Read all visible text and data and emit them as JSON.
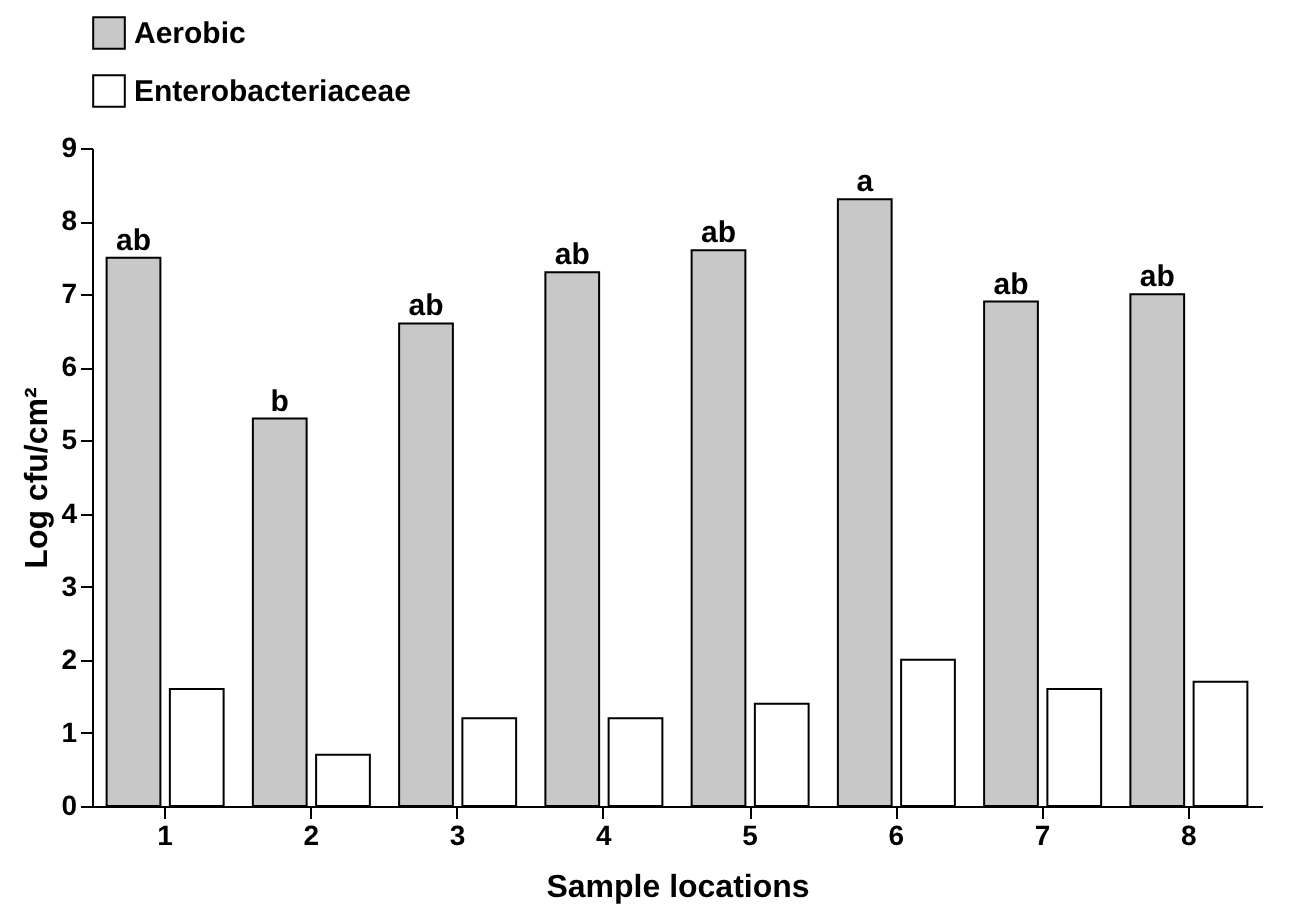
{
  "chart_data": {
    "type": "bar",
    "xlabel": "Sample locations",
    "ylabel": "Log cfu/cm²",
    "categories": [
      "1",
      "2",
      "3",
      "4",
      "5",
      "6",
      "7",
      "8"
    ],
    "series": [
      {
        "name": "Aerobic",
        "color": "#c8c8c8",
        "values": [
          7.5,
          5.3,
          6.6,
          7.3,
          7.6,
          8.3,
          6.9,
          7.0
        ]
      },
      {
        "name": "Enterobacteriaceae",
        "color": "#ffffff",
        "values": [
          1.6,
          0.7,
          1.2,
          1.2,
          1.4,
          2.0,
          1.6,
          1.7
        ]
      }
    ],
    "ylim": [
      0,
      9
    ],
    "yticks": [
      0,
      1,
      2,
      3,
      4,
      5,
      6,
      7,
      8,
      9
    ],
    "grid": false,
    "legend": "top",
    "annotations": [
      {
        "text": "ab",
        "x": "1",
        "y": 7.5
      },
      {
        "text": "b",
        "x": "2",
        "y": 5.3
      },
      {
        "text": "ab",
        "x": "3",
        "y": 6.6
      },
      {
        "text": "ab",
        "x": "4",
        "y": 7.3
      },
      {
        "text": "ab",
        "x": "5",
        "y": 7.6
      },
      {
        "text": "a",
        "x": "6",
        "y": 8.3
      },
      {
        "text": "ab",
        "x": "7",
        "y": 6.9
      },
      {
        "text": "ab",
        "x": "8",
        "y": 7.0
      }
    ]
  }
}
